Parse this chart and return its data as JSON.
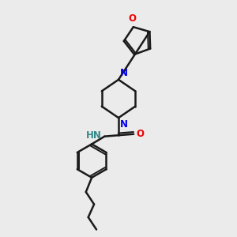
{
  "bg_color": "#ebebeb",
  "bond_color": "#1a1a1a",
  "N_color": "#0000ee",
  "O_color": "#ee0000",
  "H_color": "#338888",
  "line_width": 1.8,
  "font_size": 8.5,
  "xlim": [
    0,
    10
  ],
  "ylim": [
    0,
    10
  ]
}
